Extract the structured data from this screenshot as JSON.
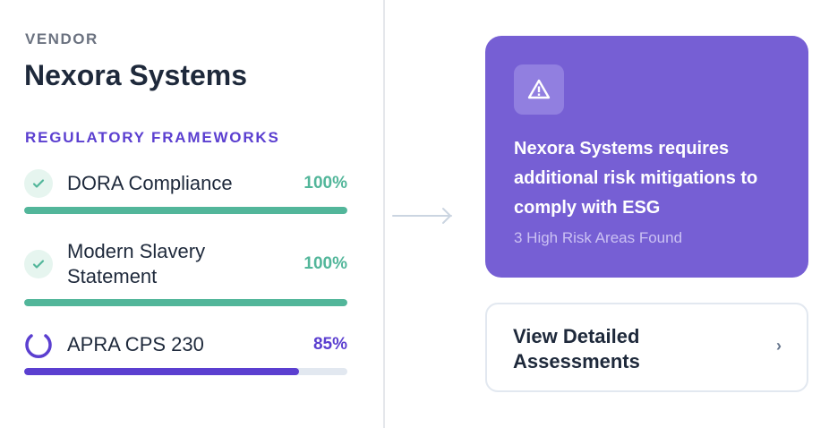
{
  "vendor": {
    "label": "VENDOR",
    "name": "Nexora Systems"
  },
  "frameworks": {
    "title": "REGULATORY FRAMEWORKS",
    "items": [
      {
        "name": "DORA Compliance",
        "percent_label": "100%",
        "progress": 100,
        "status": "complete",
        "color": "#52b69a"
      },
      {
        "name_line1": "Modern Slavery",
        "name_line2": "Statement",
        "percent_label": "100%",
        "progress": 100,
        "status": "complete",
        "color": "#52b69a"
      },
      {
        "name": "APRA CPS 230",
        "percent_label": "85%",
        "progress": 85,
        "status": "in-progress",
        "color": "#5b3fd0"
      }
    ]
  },
  "alert": {
    "icon": "warning-triangle-icon",
    "message": "Nexora Systems requires additional risk mitigations to comply with ESG",
    "subtext": "3 High Risk Areas Found",
    "color": "#765fd4"
  },
  "action": {
    "label_line1": "View Detailed",
    "label_line2": "Assessments",
    "icon": "chevron-right-icon"
  }
}
